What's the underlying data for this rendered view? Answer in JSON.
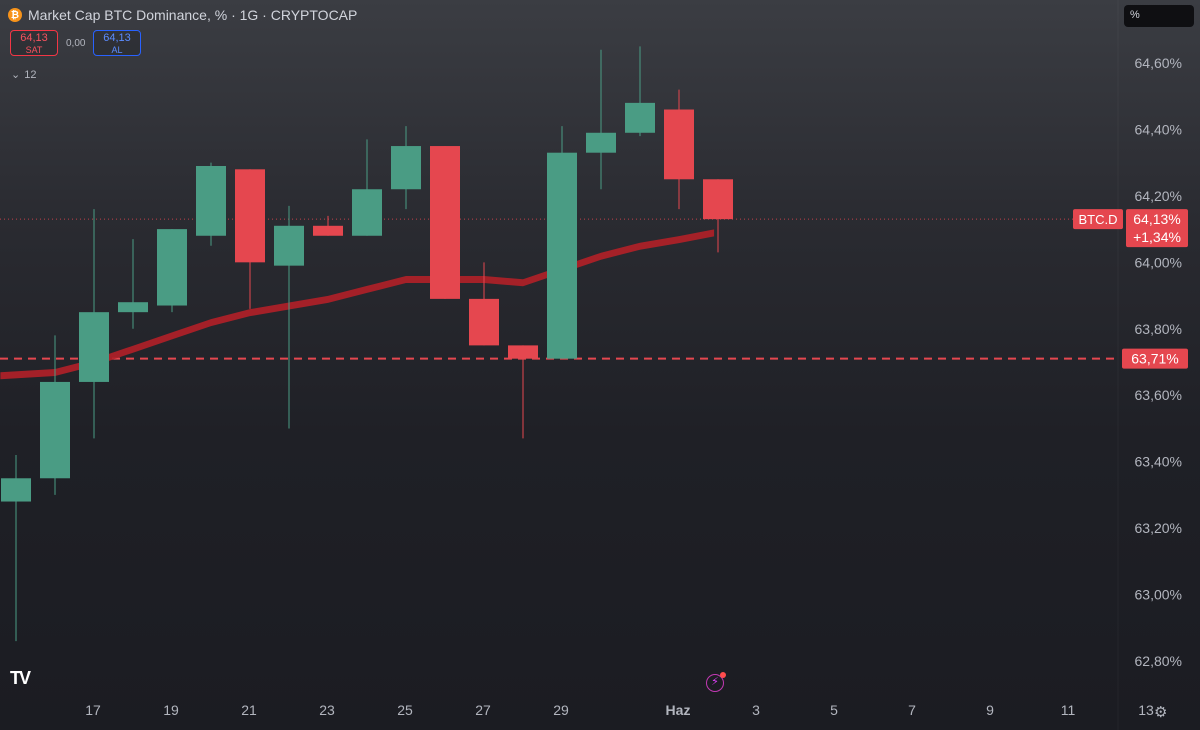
{
  "header": {
    "coin_icon": "bitcoin-icon",
    "title": "Market Cap BTC Dominance, % · 1G · CRYPTOCAP"
  },
  "trade": {
    "sell_value": "64,13",
    "sell_label": "SAT",
    "spread": "0,00",
    "buy_value": "64,13",
    "buy_label": "AL"
  },
  "indicators": {
    "count": "12"
  },
  "scale_button": "%",
  "colors": {
    "up": "#4a9c84",
    "down": "#e5474f",
    "ema": "#b32028",
    "label_bg": "#e5474f"
  },
  "chart_data": {
    "type": "candlestick",
    "title": "Market Cap BTC Dominance, % · 1G · CRYPTOCAP",
    "y_ticks": [
      "62,80%",
      "63,00%",
      "63,20%",
      "63,40%",
      "63,60%",
      "63,80%",
      "64,00%",
      "64,20%",
      "64,40%",
      "64,60%"
    ],
    "y_tick_values": [
      62.8,
      63.0,
      63.2,
      63.4,
      63.6,
      63.8,
      64.0,
      64.2,
      64.4,
      64.6
    ],
    "ylim": [
      62.7,
      64.72
    ],
    "x_ticks": [
      "17",
      "19",
      "21",
      "23",
      "25",
      "27",
      "29",
      "Haz",
      "3",
      "5",
      "7",
      "9",
      "11",
      "13"
    ],
    "x_tick_day_index": [
      1,
      3,
      5,
      7,
      9,
      11,
      13,
      16,
      18,
      20,
      22,
      24,
      26,
      28
    ],
    "candles": [
      {
        "d": 0,
        "o": 63.28,
        "h": 63.42,
        "l": 62.86,
        "c": 63.35
      },
      {
        "d": 1,
        "o": 63.35,
        "h": 63.78,
        "l": 63.3,
        "c": 63.64
      },
      {
        "d": 2,
        "o": 63.64,
        "h": 64.16,
        "l": 63.47,
        "c": 63.85
      },
      {
        "d": 3,
        "o": 63.85,
        "h": 64.07,
        "l": 63.8,
        "c": 63.88
      },
      {
        "d": 4,
        "o": 63.87,
        "h": 64.1,
        "l": 63.85,
        "c": 64.1
      },
      {
        "d": 5,
        "o": 64.08,
        "h": 64.3,
        "l": 64.05,
        "c": 64.29
      },
      {
        "d": 6,
        "o": 64.28,
        "h": 64.28,
        "l": 63.86,
        "c": 64.0
      },
      {
        "d": 7,
        "o": 63.99,
        "h": 64.17,
        "l": 63.5,
        "c": 64.11
      },
      {
        "d": 8,
        "o": 64.11,
        "h": 64.14,
        "l": 64.08,
        "c": 64.08
      },
      {
        "d": 9,
        "o": 64.08,
        "h": 64.37,
        "l": 64.08,
        "c": 64.22
      },
      {
        "d": 10,
        "o": 64.22,
        "h": 64.41,
        "l": 64.16,
        "c": 64.35
      },
      {
        "d": 11,
        "o": 64.35,
        "h": 64.35,
        "l": 63.89,
        "c": 63.89
      },
      {
        "d": 12,
        "o": 63.89,
        "h": 64.0,
        "l": 63.75,
        "c": 63.75
      },
      {
        "d": 13,
        "o": 63.75,
        "h": 63.75,
        "l": 63.47,
        "c": 63.71
      },
      {
        "d": 14,
        "o": 63.71,
        "h": 64.41,
        "l": 63.71,
        "c": 64.33
      },
      {
        "d": 15,
        "o": 64.33,
        "h": 64.64,
        "l": 64.22,
        "c": 64.39
      },
      {
        "d": 16,
        "o": 64.39,
        "h": 64.65,
        "l": 64.38,
        "c": 64.48
      },
      {
        "d": 17,
        "o": 64.46,
        "h": 64.52,
        "l": 64.16,
        "c": 64.25
      },
      {
        "d": 18,
        "o": 64.25,
        "h": 64.25,
        "l": 64.03,
        "c": 64.13
      }
    ],
    "ema_points": [
      {
        "d": -0.4,
        "v": 63.66
      },
      {
        "d": 1,
        "v": 63.67
      },
      {
        "d": 2,
        "v": 63.7
      },
      {
        "d": 3,
        "v": 63.74
      },
      {
        "d": 4,
        "v": 63.78
      },
      {
        "d": 5,
        "v": 63.82
      },
      {
        "d": 6,
        "v": 63.85
      },
      {
        "d": 7,
        "v": 63.87
      },
      {
        "d": 8,
        "v": 63.89
      },
      {
        "d": 9,
        "v": 63.92
      },
      {
        "d": 10,
        "v": 63.95
      },
      {
        "d": 11,
        "v": 63.95
      },
      {
        "d": 12,
        "v": 63.95
      },
      {
        "d": 13,
        "v": 63.94
      },
      {
        "d": 14,
        "v": 63.98
      },
      {
        "d": 15,
        "v": 64.02
      },
      {
        "d": 16,
        "v": 64.05
      },
      {
        "d": 17,
        "v": 64.07
      },
      {
        "d": 17.9,
        "v": 64.09
      }
    ],
    "current_price": 64.13,
    "current_label_symbol": "BTC.D",
    "current_label_price": "64,13%",
    "current_label_change": "+1,34%",
    "hline_value": 63.71,
    "hline_label": "63,71%"
  }
}
